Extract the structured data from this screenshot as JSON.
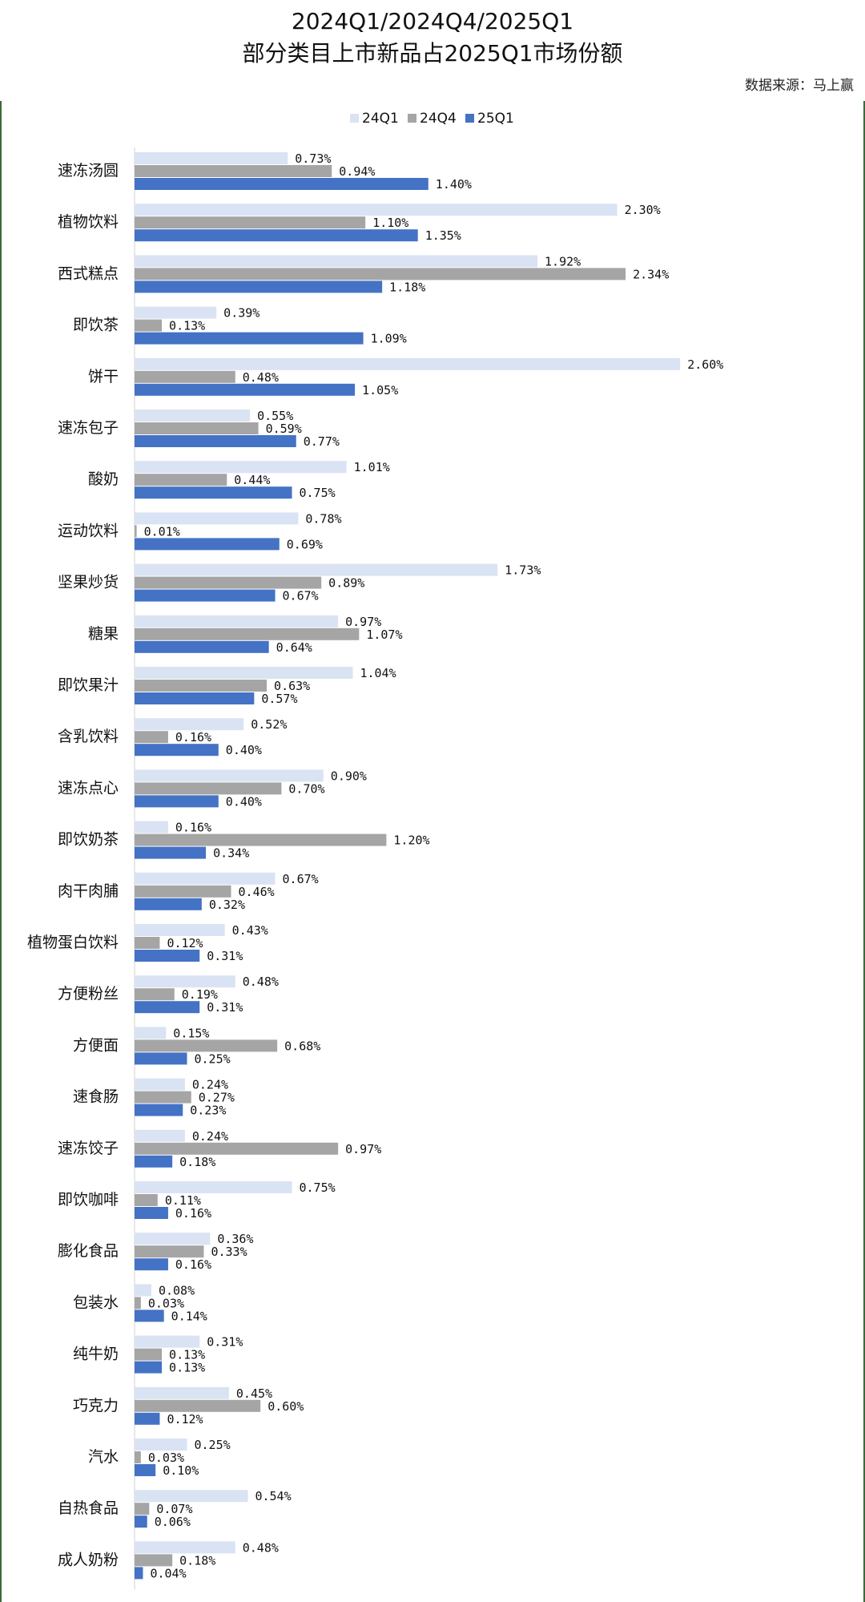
{
  "header": {
    "title_line1": "2024Q1/2024Q4/2025Q1",
    "title_line2": "部分类目上市新品占2025Q1市场份额",
    "source": "数据来源：马上赢"
  },
  "chart_data": {
    "type": "bar",
    "orientation": "horizontal",
    "title": "2024Q1/2024Q4/2025Q1 部分类目上市新品占2025Q1市场份额",
    "legend_position": "top",
    "value_format": "percent",
    "xlim": [
      0,
      3.0
    ],
    "categories": [
      "速冻汤圆",
      "植物饮料",
      "西式糕点",
      "即饮茶",
      "饼干",
      "速冻包子",
      "酸奶",
      "运动饮料",
      "坚果炒货",
      "糖果",
      "即饮果汁",
      "含乳饮料",
      "速冻点心",
      "即饮奶茶",
      "肉干肉脯",
      "植物蛋白饮料",
      "方便粉丝",
      "方便面",
      "速食肠",
      "速冻饺子",
      "即饮咖啡",
      "膨化食品",
      "包装水",
      "纯牛奶",
      "巧克力",
      "汽水",
      "自热食品",
      "成人奶粉"
    ],
    "series": [
      {
        "name": "24Q1",
        "color": "#dae3f3",
        "values": [
          0.73,
          2.3,
          1.92,
          0.39,
          2.6,
          0.55,
          1.01,
          0.78,
          1.73,
          0.97,
          1.04,
          0.52,
          0.9,
          0.16,
          0.67,
          0.43,
          0.48,
          0.15,
          0.24,
          0.24,
          0.75,
          0.36,
          0.08,
          0.31,
          0.45,
          0.25,
          0.54,
          0.48
        ]
      },
      {
        "name": "24Q4",
        "color": "#a5a5a5",
        "values": [
          0.94,
          1.1,
          2.34,
          0.13,
          0.48,
          0.59,
          0.44,
          0.01,
          0.89,
          1.07,
          0.63,
          0.16,
          0.7,
          1.2,
          0.46,
          0.12,
          0.19,
          0.68,
          0.27,
          0.97,
          0.11,
          0.33,
          0.03,
          0.13,
          0.6,
          0.03,
          0.07,
          0.18
        ]
      },
      {
        "name": "25Q1",
        "color": "#4472c4",
        "values": [
          1.4,
          1.35,
          1.18,
          1.09,
          1.05,
          0.77,
          0.75,
          0.69,
          0.67,
          0.64,
          0.57,
          0.4,
          0.4,
          0.34,
          0.32,
          0.31,
          0.31,
          0.25,
          0.23,
          0.18,
          0.16,
          0.16,
          0.14,
          0.13,
          0.12,
          0.1,
          0.06,
          0.04
        ]
      }
    ]
  }
}
